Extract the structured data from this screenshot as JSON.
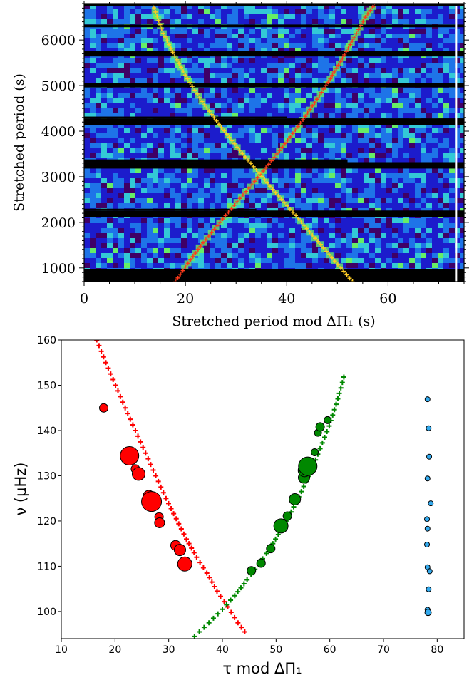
{
  "chart_data": [
    {
      "type": "heatmap",
      "title": "",
      "xlabel": "Stretched period mod ΔΠ₁ (s)",
      "ylabel": "Stretched period (s)",
      "xlim": [
        0,
        75
      ],
      "ylim": [
        700,
        6800
      ],
      "xticks": [
        0,
        20,
        40,
        60
      ],
      "yticks": [
        1000,
        2000,
        3000,
        4000,
        5000,
        6000
      ],
      "colormap": [
        "#000000",
        "#3f0066",
        "#1c1ccc",
        "#1e74e8",
        "#33c9d6",
        "#66ee66",
        "#c8f040"
      ],
      "masked_rows": [
        {
          "y": [
            700,
            980
          ],
          "x": [
            0,
            10
          ]
        },
        {
          "y": [
            700,
            980
          ],
          "x": [
            0,
            75
          ]
        },
        {
          "y": [
            2110,
            2260
          ],
          "x": [
            0,
            75
          ]
        },
        {
          "y": [
            2260,
            2300
          ],
          "x": [
            0,
            34
          ]
        },
        {
          "y": [
            3180,
            3320
          ],
          "x": [
            0,
            75
          ]
        },
        {
          "y": [
            3320,
            3380
          ],
          "x": [
            0,
            52
          ]
        },
        {
          "y": [
            4130,
            4280
          ],
          "x": [
            0,
            75
          ]
        },
        {
          "y": [
            4280,
            4320
          ],
          "x": [
            0,
            40
          ]
        },
        {
          "y": [
            4960,
            5060
          ],
          "x": [
            0,
            75
          ]
        },
        {
          "y": [
            5640,
            5760
          ],
          "x": [
            0,
            75
          ]
        },
        {
          "y": [
            6280,
            6340
          ],
          "x": [
            0,
            75
          ]
        },
        {
          "y": [
            6740,
            6800
          ],
          "x": [
            0,
            75
          ]
        }
      ],
      "vertical_line_x": 73.5,
      "series": [
        {
          "color": "#ff3a1a",
          "x": [
            18.0,
            20.5,
            23.5,
            26.8,
            30.2,
            33.7,
            37.0,
            40.2,
            43.2,
            46.0,
            48.6,
            51.0,
            53.3,
            55.5,
            57.5
          ],
          "y": [
            700,
            1100,
            1550,
            2000,
            2450,
            2900,
            3350,
            3800,
            4250,
            4700,
            5150,
            5600,
            6050,
            6500,
            6800
          ]
        },
        {
          "color": "#ffcc22",
          "x": [
            53.0,
            49.5,
            45.6,
            41.8,
            37.8,
            34.0,
            30.2,
            26.6,
            23.3,
            20.4,
            17.9,
            15.6,
            13.5
          ],
          "y": [
            700,
            1150,
            1650,
            2150,
            2650,
            3150,
            3650,
            4150,
            4650,
            5150,
            5650,
            6150,
            6800
          ]
        }
      ]
    },
    {
      "type": "scatter",
      "title": "",
      "xlabel": "τ mod ΔΠ₁",
      "ylabel": "ν (μHz)",
      "xlim": [
        10,
        85
      ],
      "ylim": [
        94,
        160
      ],
      "xticks": [
        10,
        20,
        30,
        40,
        50,
        60,
        70,
        80
      ],
      "yticks": [
        100,
        110,
        120,
        130,
        140,
        150,
        160
      ],
      "curves": [
        {
          "name": "",
          "color": "#ff0000",
          "marker": "+",
          "x": [
            16.6,
            18.3,
            20.1,
            21.9,
            23.8,
            25.7,
            27.6,
            29.5,
            31.4,
            33.3,
            35.2,
            37.1,
            39.0,
            41.0,
            42.9,
            44.8
          ],
          "y": [
            160,
            155,
            150,
            145,
            140,
            135,
            130,
            125,
            120.5,
            116,
            112,
            108.5,
            104.5,
            101,
            97.5,
            94.5
          ]
        },
        {
          "name": "",
          "color": "#008800",
          "marker": "+",
          "x": [
            34.8,
            37.5,
            40.0,
            42.3,
            44.6,
            46.8,
            48.9,
            50.9,
            52.8,
            54.7,
            56.5,
            58.2,
            59.9,
            61.5,
            62.9
          ],
          "y": [
            94.5,
            97.5,
            100.5,
            103.5,
            107,
            110.5,
            114,
            118,
            122,
            126.5,
            131,
            136,
            141,
            147,
            153
          ]
        }
      ],
      "points": [
        {
          "group": "red",
          "color": "#ff0000",
          "x": 17.9,
          "y": 145.0,
          "size": 6
        },
        {
          "group": "red",
          "color": "#ff0000",
          "x": 22.7,
          "y": 134.4,
          "size": 13
        },
        {
          "group": "red",
          "color": "#ff0000",
          "x": 23.8,
          "y": 131.5,
          "size": 6
        },
        {
          "group": "red",
          "color": "#ff0000",
          "x": 24.4,
          "y": 130.4,
          "size": 9
        },
        {
          "group": "red",
          "color": "#ff0000",
          "x": 26.3,
          "y": 125.5,
          "size": 8
        },
        {
          "group": "red",
          "color": "#ff0000",
          "x": 26.8,
          "y": 124.3,
          "size": 14
        },
        {
          "group": "red",
          "color": "#ff0000",
          "x": 28.2,
          "y": 120.9,
          "size": 6
        },
        {
          "group": "red",
          "color": "#ff0000",
          "x": 28.3,
          "y": 119.6,
          "size": 7
        },
        {
          "group": "red",
          "color": "#ff0000",
          "x": 31.3,
          "y": 114.6,
          "size": 7
        },
        {
          "group": "red",
          "color": "#ff0000",
          "x": 32.1,
          "y": 113.6,
          "size": 8
        },
        {
          "group": "red",
          "color": "#ff0000",
          "x": 33.0,
          "y": 110.5,
          "size": 10
        },
        {
          "group": "green",
          "color": "#008800",
          "x": 45.4,
          "y": 109.0,
          "size": 6
        },
        {
          "group": "green",
          "color": "#008800",
          "x": 47.2,
          "y": 110.7,
          "size": 6
        },
        {
          "group": "green",
          "color": "#008800",
          "x": 49.0,
          "y": 113.9,
          "size": 6
        },
        {
          "group": "green",
          "color": "#008800",
          "x": 50.9,
          "y": 118.9,
          "size": 10
        },
        {
          "group": "green",
          "color": "#008800",
          "x": 52.1,
          "y": 121.1,
          "size": 6
        },
        {
          "group": "green",
          "color": "#008800",
          "x": 53.5,
          "y": 124.8,
          "size": 8
        },
        {
          "group": "green",
          "color": "#008800",
          "x": 55.2,
          "y": 129.6,
          "size": 8
        },
        {
          "group": "green",
          "color": "#008800",
          "x": 55.3,
          "y": 131.2,
          "size": 9
        },
        {
          "group": "green",
          "color": "#008800",
          "x": 55.9,
          "y": 132.1,
          "size": 13
        },
        {
          "group": "green",
          "color": "#008800",
          "x": 57.2,
          "y": 135.2,
          "size": 5
        },
        {
          "group": "green",
          "color": "#008800",
          "x": 57.8,
          "y": 139.5,
          "size": 5
        },
        {
          "group": "green",
          "color": "#008800",
          "x": 58.2,
          "y": 140.8,
          "size": 6
        },
        {
          "group": "green",
          "color": "#008800",
          "x": 59.6,
          "y": 142.3,
          "size": 5
        },
        {
          "group": "blue",
          "color": "#33aaee",
          "x": 78.2,
          "y": 146.9,
          "size": 3.5
        },
        {
          "group": "blue",
          "color": "#33aaee",
          "x": 78.4,
          "y": 140.5,
          "size": 3.5
        },
        {
          "group": "blue",
          "color": "#33aaee",
          "x": 78.5,
          "y": 134.2,
          "size": 3.5
        },
        {
          "group": "blue",
          "color": "#33aaee",
          "x": 78.2,
          "y": 129.4,
          "size": 3.5
        },
        {
          "group": "blue",
          "color": "#33aaee",
          "x": 78.8,
          "y": 123.9,
          "size": 3.5
        },
        {
          "group": "blue",
          "color": "#33aaee",
          "x": 78.1,
          "y": 120.4,
          "size": 3.5
        },
        {
          "group": "blue",
          "color": "#33aaee",
          "x": 78.2,
          "y": 118.3,
          "size": 3.5
        },
        {
          "group": "blue",
          "color": "#33aaee",
          "x": 78.1,
          "y": 114.8,
          "size": 3.5
        },
        {
          "group": "blue",
          "color": "#33aaee",
          "x": 78.2,
          "y": 109.8,
          "size": 3.5
        },
        {
          "group": "blue",
          "color": "#33aaee",
          "x": 78.6,
          "y": 108.9,
          "size": 3.5
        },
        {
          "group": "blue",
          "color": "#33aaee",
          "x": 78.4,
          "y": 104.9,
          "size": 3.5
        },
        {
          "group": "blue",
          "color": "#33aaee",
          "x": 78.2,
          "y": 100.4,
          "size": 3.5
        },
        {
          "group": "blue",
          "color": "#33aaee",
          "x": 78.3,
          "y": 99.8,
          "size": 4.5
        }
      ]
    }
  ]
}
